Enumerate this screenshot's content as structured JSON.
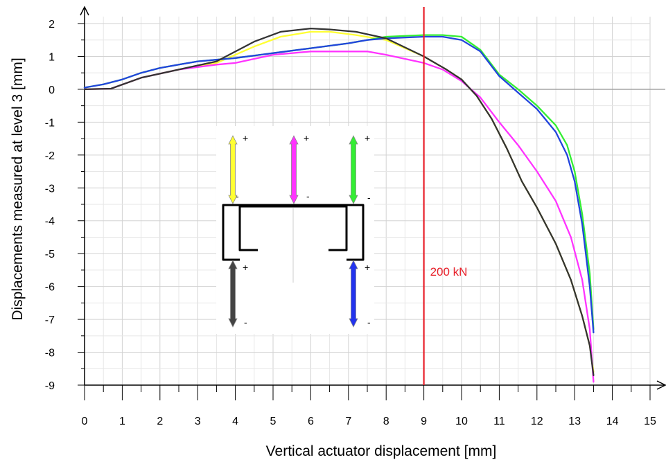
{
  "chart_data": {
    "type": "line",
    "xlabel": "Vertical actuator displacement [mm]",
    "ylabel": "Displacements measured at level 3 [mm]",
    "xlim": [
      0,
      15
    ],
    "ylim": [
      -9,
      2
    ],
    "xticks": [
      0,
      1,
      2,
      3,
      4,
      5,
      6,
      7,
      8,
      9,
      10,
      11,
      12,
      13,
      14,
      15
    ],
    "yticks": [
      2,
      1,
      0,
      -1,
      -2,
      -3,
      -4,
      -5,
      -6,
      -7,
      -8,
      -9
    ],
    "grid": true,
    "annotations": [
      {
        "type": "vertical-line",
        "x": 9,
        "color": "#e8202a",
        "label": "200 kN",
        "label_y": -5.5
      }
    ],
    "series": [
      {
        "color": "#ffff33",
        "x": [
          0,
          0.7,
          1.5,
          2.5,
          3.5,
          4.5,
          5.2,
          6.0,
          6.5,
          7.2,
          8.0,
          9.0,
          9.6,
          10.0,
          10.4,
          10.8,
          11.2,
          11.6,
          12.0,
          12.5,
          12.9,
          13.2,
          13.4,
          13.5
        ],
        "y": [
          0,
          0.02,
          0.35,
          0.6,
          0.8,
          1.3,
          1.6,
          1.75,
          1.75,
          1.65,
          1.5,
          1.0,
          0.6,
          0.3,
          -0.2,
          -0.9,
          -1.8,
          -2.8,
          -3.6,
          -4.7,
          -5.8,
          -6.9,
          -7.8,
          -8.6
        ]
      },
      {
        "color": "#ff33ff",
        "x": [
          0,
          0.7,
          1.5,
          2.5,
          3.5,
          4.0,
          5.0,
          6.0,
          7.0,
          7.5,
          8.0,
          9.0,
          9.5,
          10.0,
          10.5,
          11.0,
          11.5,
          12.0,
          12.5,
          12.9,
          13.2,
          13.4,
          13.5
        ],
        "y": [
          0,
          0.02,
          0.35,
          0.6,
          0.75,
          0.8,
          1.05,
          1.15,
          1.15,
          1.15,
          1.05,
          0.8,
          0.6,
          0.25,
          -0.25,
          -1.0,
          -1.7,
          -2.5,
          -3.4,
          -4.5,
          -5.8,
          -7.3,
          -8.9
        ]
      },
      {
        "color": "#33ee33",
        "x": [
          0,
          0.5,
          1.0,
          1.5,
          2.0,
          2.5,
          3.0,
          3.5,
          4.0,
          5.0,
          6.0,
          7.0,
          7.5,
          8.0,
          9.0,
          9.5,
          10.0,
          10.5,
          11.0,
          11.5,
          12.0,
          12.5,
          12.8,
          13.0,
          13.2,
          13.4,
          13.5
        ],
        "y": [
          0.05,
          0.15,
          0.3,
          0.5,
          0.65,
          0.75,
          0.85,
          0.9,
          0.95,
          1.1,
          1.25,
          1.4,
          1.5,
          1.6,
          1.65,
          1.65,
          1.6,
          1.2,
          0.45,
          0.0,
          -0.5,
          -1.1,
          -1.7,
          -2.5,
          -3.8,
          -5.6,
          -7.3
        ]
      },
      {
        "color": "#2244dd",
        "x": [
          0,
          0.5,
          1.0,
          1.5,
          2.0,
          2.5,
          3.0,
          3.5,
          4.0,
          5.0,
          6.0,
          7.0,
          7.5,
          8.0,
          9.0,
          9.5,
          10.0,
          10.5,
          11.0,
          11.5,
          12.0,
          12.5,
          12.8,
          13.0,
          13.2,
          13.4,
          13.5
        ],
        "y": [
          0.05,
          0.15,
          0.3,
          0.5,
          0.65,
          0.75,
          0.85,
          0.9,
          0.95,
          1.1,
          1.25,
          1.4,
          1.5,
          1.55,
          1.6,
          1.6,
          1.5,
          1.15,
          0.4,
          -0.1,
          -0.6,
          -1.3,
          -2.0,
          -2.8,
          -4.1,
          -6.0,
          -7.4
        ]
      },
      {
        "color": "#333333",
        "x": [
          0,
          0.7,
          1.5,
          2.5,
          3.5,
          4.5,
          5.2,
          6.0,
          6.5,
          7.2,
          8.0,
          9.0,
          9.6,
          10.0,
          10.4,
          10.8,
          11.2,
          11.6,
          12.0,
          12.5,
          12.9,
          13.2,
          13.4,
          13.5
        ],
        "y": [
          0,
          0.02,
          0.35,
          0.6,
          0.85,
          1.45,
          1.75,
          1.85,
          1.82,
          1.75,
          1.55,
          1.0,
          0.6,
          0.3,
          -0.2,
          -0.9,
          -1.8,
          -2.8,
          -3.6,
          -4.7,
          -5.8,
          -6.9,
          -7.8,
          -8.7
        ]
      }
    ],
    "inset": {
      "arrows": [
        {
          "color": "#ffff33",
          "plus": "+",
          "minus": "-"
        },
        {
          "color": "#ff33ff",
          "plus": "+",
          "minus": "-"
        },
        {
          "color": "#33ee33",
          "plus": "+",
          "minus": "-"
        },
        {
          "color": "#444444",
          "plus": "+",
          "minus": "-"
        },
        {
          "color": "#2233ee",
          "plus": "+",
          "minus": "-"
        }
      ]
    }
  }
}
